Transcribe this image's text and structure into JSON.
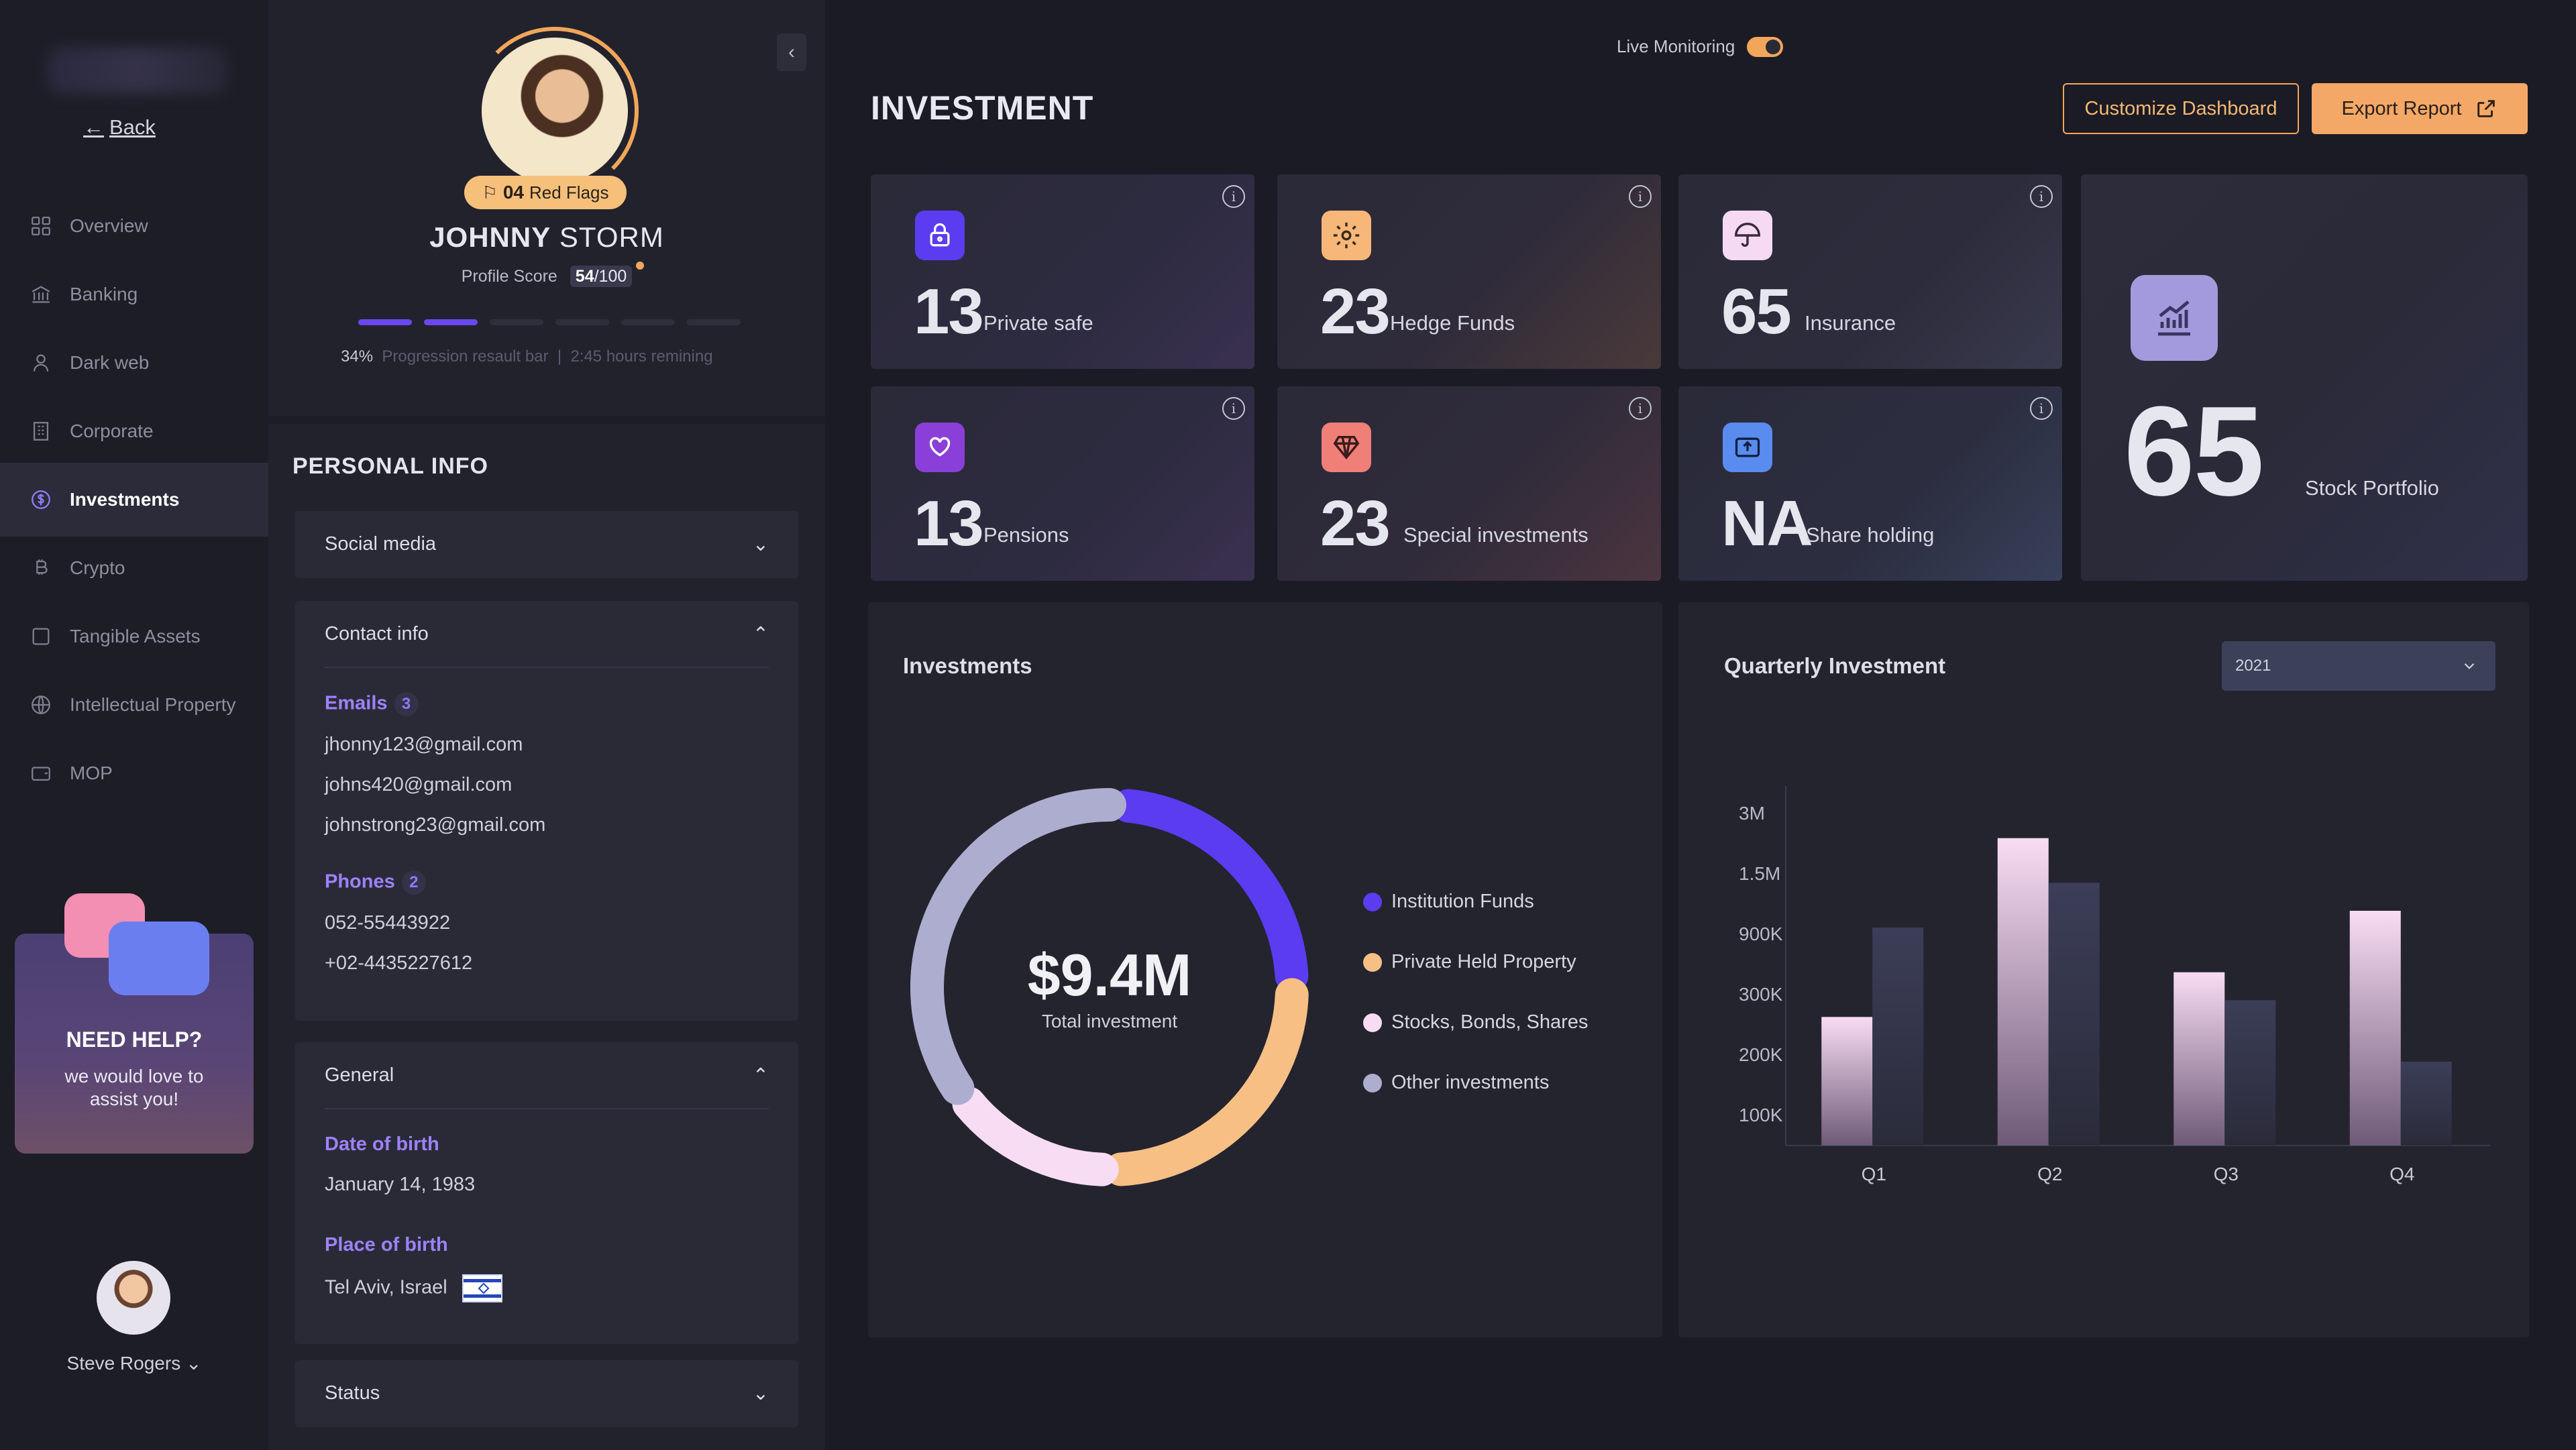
{
  "sidebar": {
    "back_label": "Back",
    "items": [
      {
        "label": "Overview",
        "icon": "grid-icon"
      },
      {
        "label": "Banking",
        "icon": "bank-icon"
      },
      {
        "label": "Dark web",
        "icon": "spy-icon"
      },
      {
        "label": "Corporate",
        "icon": "building-icon"
      },
      {
        "label": "Investments",
        "icon": "dollar-circle-icon",
        "active": true
      },
      {
        "label": "Crypto",
        "icon": "bitcoin-icon"
      },
      {
        "label": "Tangible Assets",
        "icon": "square-icon"
      },
      {
        "label": "Intellectual Property",
        "icon": "globe-icon"
      },
      {
        "label": "MOP",
        "icon": "wallet-icon"
      }
    ],
    "help": {
      "title": "NEED HELP?",
      "text": "we would love to assist you!"
    },
    "user": {
      "name": "Steve Rogers"
    }
  },
  "profile": {
    "red_flags_count": "04",
    "red_flags_label": "Red Flags",
    "first_name": "JOHNNY",
    "last_name": "STORM",
    "score_label": "Profile Score",
    "score_value": "54",
    "score_max": "/100",
    "progress_percent": "34%",
    "progress_caption": "Progression resault bar",
    "progress_sep": "|",
    "progress_remaining": "2:45 hours remining",
    "progress_segments_filled": 2,
    "progress_segments_total": 7,
    "personal_info_title": "PERSONAL INFO",
    "social_media_label": "Social media",
    "contact_info_label": "Contact info",
    "emails_label": "Emails",
    "emails_count": "3",
    "emails": [
      "jhonny123@gmail.com",
      "johns420@gmail.com",
      "johnstrong23@gmail.com"
    ],
    "phones_label": "Phones",
    "phones_count": "2",
    "phones": [
      "052-55443922",
      "+02-4435227612"
    ],
    "general_label": "General",
    "dob_label": "Date of birth",
    "dob_value": "January 14, 1983",
    "pob_label": "Place of birth",
    "pob_value": "Tel Aviv, Israel",
    "status_label": "Status"
  },
  "header": {
    "live_label": "Live Monitoring",
    "live_on": true,
    "title": "INVESTMENT",
    "customize_label": "Customize Dashboard",
    "export_label": "Export Report"
  },
  "stats": [
    {
      "value": "13",
      "label": "Private safe",
      "icon": "lock-icon",
      "color": "#6a4bf0"
    },
    {
      "value": "23",
      "label": "Hedge Funds",
      "icon": "gear-icon",
      "color": "#f7b778"
    },
    {
      "value": "65",
      "label": "Insurance",
      "icon": "umbrella-icon",
      "color": "#f6d9f2"
    },
    {
      "value": "13",
      "label": "Pensions",
      "icon": "heart-hand-icon",
      "color": "#8a40d8"
    },
    {
      "value": "23",
      "label": "Special investments",
      "icon": "diamond-icon",
      "color": "#f07f78"
    },
    {
      "value": "NA",
      "label": "Share holding",
      "icon": "upload-box-icon",
      "color": "#5a8cf0"
    },
    {
      "value": "65",
      "label": "Stock Portfolio",
      "icon": "chart-up-icon",
      "color": "#a29adc"
    }
  ],
  "donut": {
    "title": "Investments",
    "total": "$9.4M",
    "total_label": "Total investment",
    "colors": {
      "institution": "#5b3cf0",
      "private": "#f8bf84",
      "stocks": "#f8dcf3",
      "other": "#adadcf"
    }
  },
  "chart_data": {
    "type": "bar",
    "title": "Quarterly Investment",
    "categories": [
      "Q1",
      "Q2",
      "Q3",
      "Q4"
    ],
    "y_ticks": [
      "3M",
      "1.5M",
      "900K",
      "300K",
      "200K",
      "100K"
    ],
    "series": [
      {
        "values": [
          2.3,
          5.5,
          3.1,
          4.2
        ]
      },
      {
        "values": [
          3.9,
          4.7,
          2.6,
          1.5
        ]
      }
    ],
    "ylim": [
      0,
      6
    ],
    "year_selected": "2021"
  },
  "chart_donut": {
    "type": "pie",
    "categories": [
      "Institution Funds",
      "Private Held Property",
      "Stocks, Bonds, Shares",
      "Other investments"
    ],
    "values": [
      24,
      25,
      15,
      36
    ]
  }
}
